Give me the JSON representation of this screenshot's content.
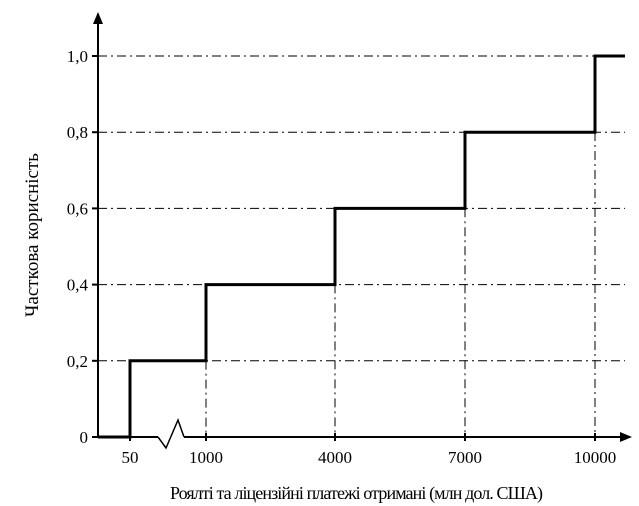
{
  "chart_data": {
    "type": "line",
    "subtype": "step",
    "title": "",
    "xlabel": "Роялті та ліцензійні платежі отримані (млн дол. США)",
    "ylabel": "Часткова корисність",
    "x_ticks": [
      "50",
      "1000",
      "4000",
      "7000",
      "10000"
    ],
    "y_ticks": [
      "0",
      "0,2",
      "0,4",
      "0,6",
      "0,8",
      "1,0"
    ],
    "ylim": [
      0,
      1.0
    ],
    "x_axis_break": "between 50 and 1000",
    "grid": "dash-dot reference lines at each step",
    "legend": "none",
    "line_color": "#000000",
    "series": [
      {
        "points": [
          {
            "x": 50,
            "y": 0
          },
          {
            "x": 50,
            "y": 0.2
          },
          {
            "x": 1000,
            "y": 0.2
          },
          {
            "x": 1000,
            "y": 0.4
          },
          {
            "x": 4000,
            "y": 0.4
          },
          {
            "x": 4000,
            "y": 0.6
          },
          {
            "x": 7000,
            "y": 0.6
          },
          {
            "x": 7000,
            "y": 0.8
          },
          {
            "x": 10000,
            "y": 0.8
          },
          {
            "x": 10000,
            "y": 1.0
          }
        ]
      }
    ]
  }
}
